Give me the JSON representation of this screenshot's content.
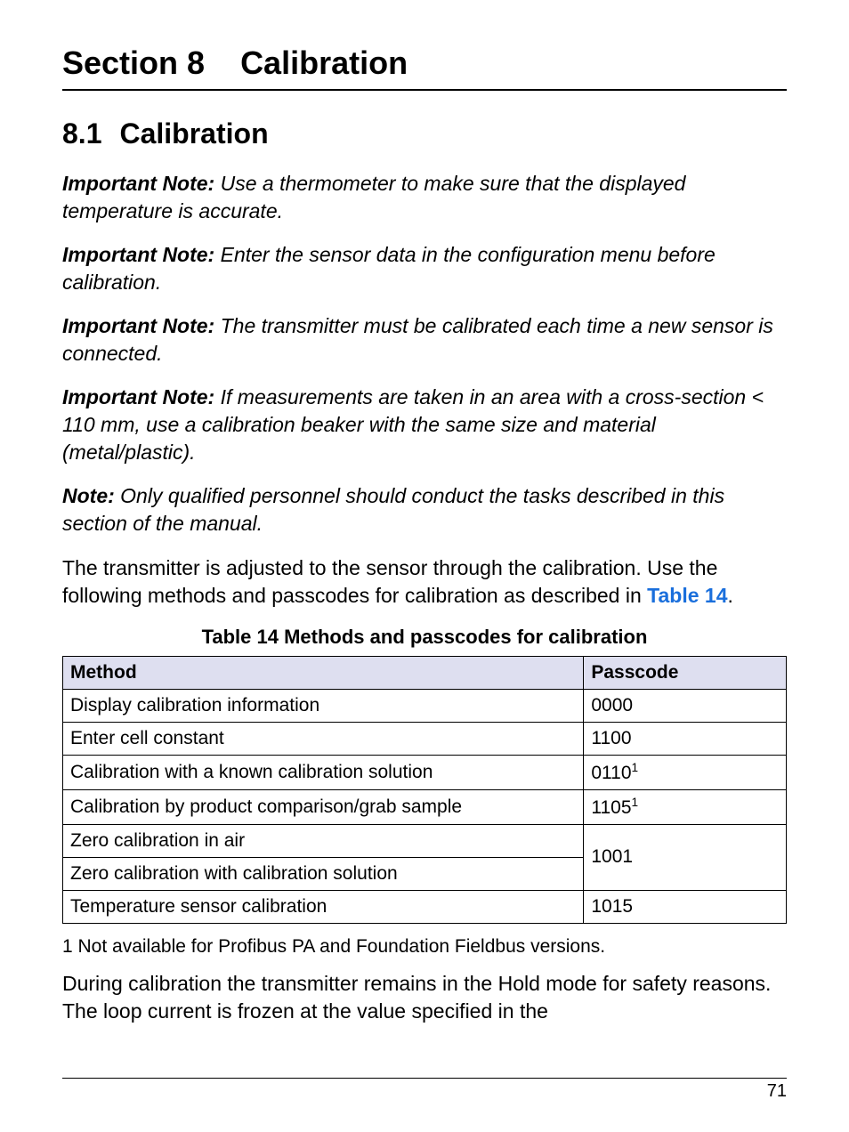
{
  "section": {
    "label": "Section 8",
    "title": "Calibration"
  },
  "subsection": {
    "number": "8.1",
    "title": "Calibration"
  },
  "notes": [
    {
      "label": "Important Note: ",
      "text": "Use a thermometer to make sure that the displayed temperature is accurate."
    },
    {
      "label": "Important Note: ",
      "text": "Enter the sensor data in the configuration menu before calibration."
    },
    {
      "label": "Important Note: ",
      "text": "The transmitter must be calibrated each time a new sensor is connected."
    },
    {
      "label": "Important Note: ",
      "text": "If measurements are taken in an area with a cross-section < 110 mm, use a calibration beaker with the same size and material (metal/plastic)."
    },
    {
      "label": "Note: ",
      "text": "Only qualified personnel should conduct the tasks described in this section of the manual."
    }
  ],
  "intro_para": {
    "pre": "The transmitter is adjusted to the sensor through the calibration. Use the following methods and passcodes for calibration as described in ",
    "link": "Table 14",
    "post": "."
  },
  "table": {
    "caption": "Table 14  Methods and passcodes for calibration",
    "headers": {
      "method": "Method",
      "passcode": "Passcode"
    },
    "rows": [
      {
        "method": "Display calibration information",
        "passcode": "0000",
        "sup": ""
      },
      {
        "method": "Enter cell constant",
        "passcode": "1100",
        "sup": ""
      },
      {
        "method": "Calibration with a known calibration solution",
        "passcode": "0110",
        "sup": "1"
      },
      {
        "method": "Calibration by product comparison/grab sample",
        "passcode": "1105",
        "sup": "1"
      },
      {
        "method": "Zero calibration in air",
        "passcode": "1001",
        "sup": "",
        "rowspan": 2
      },
      {
        "method": "Zero calibration with calibration solution",
        "passcode": "",
        "sup": "",
        "merged": true
      },
      {
        "method": "Temperature sensor calibration",
        "passcode": "1015",
        "sup": ""
      }
    ],
    "footnote": "1 Not available for Profibus PA and Foundation Fieldbus versions."
  },
  "closing_para": "During calibration the transmitter remains in the Hold mode for safety reasons. The loop current is frozen at the value specified in the",
  "page_number": "71"
}
